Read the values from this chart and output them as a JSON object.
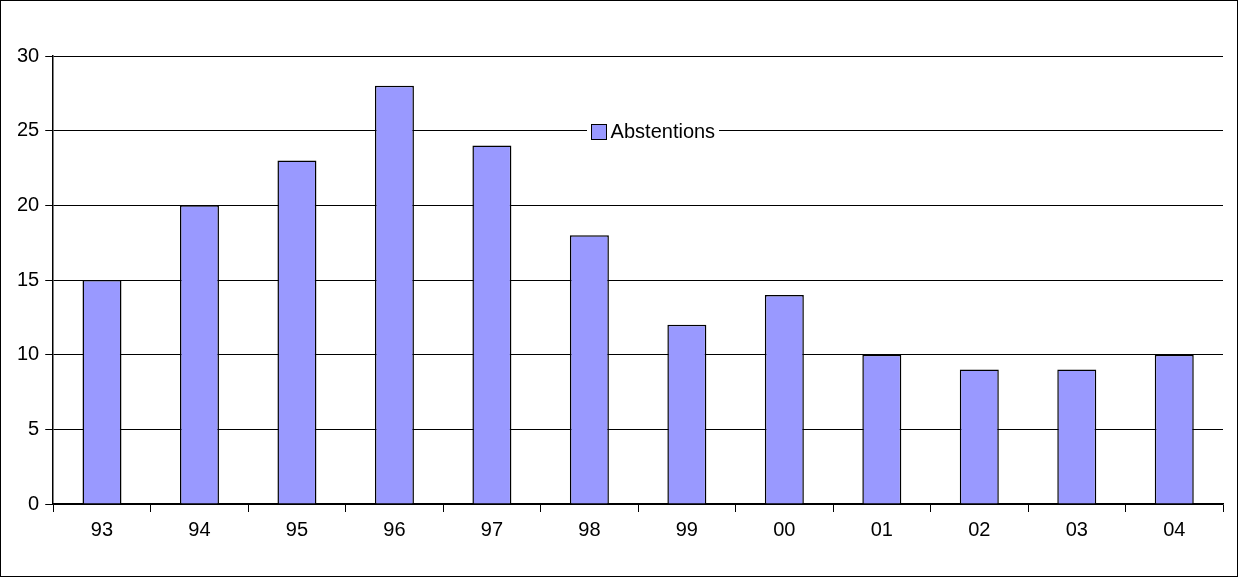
{
  "chart_data": {
    "type": "bar",
    "categories": [
      "93",
      "94",
      "95",
      "96",
      "97",
      "98",
      "99",
      "00",
      "01",
      "02",
      "03",
      "04"
    ],
    "series": [
      {
        "name": "Abstentions",
        "color": "#9999ff",
        "values": [
          15,
          20,
          23,
          28,
          24,
          18,
          12,
          14,
          10,
          9,
          9,
          10
        ]
      }
    ],
    "ylim": [
      0,
      30
    ],
    "yticks": [
      0,
      5,
      10,
      15,
      20,
      25,
      30
    ],
    "grid": "y",
    "legend": "top"
  }
}
